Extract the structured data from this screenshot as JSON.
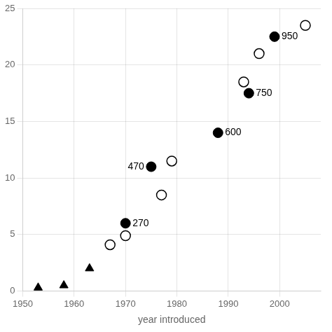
{
  "chart_data": {
    "type": "scatter",
    "x_label": "year introduced",
    "series": [
      {
        "marker": "triangle",
        "color": "#000000",
        "x": [
          1953,
          1958,
          1963
        ],
        "values": [
          0.3,
          0.5,
          2.0
        ]
      },
      {
        "marker": "circle",
        "color": "#000000",
        "x": [
          1970,
          1975,
          1988,
          1994,
          1999
        ],
        "values": [
          6.0,
          11.0,
          14.0,
          17.5,
          22.5
        ]
      },
      {
        "marker": "circle_open",
        "color": "#000000",
        "x": [
          1967,
          1970,
          1977,
          1979,
          1993,
          1996,
          2005
        ],
        "values": [
          4.1,
          4.9,
          8.5,
          11.5,
          18.5,
          21.0,
          23.5
        ]
      }
    ],
    "annotations": [
      {
        "text": "270",
        "x": 1970,
        "y": 6.0
      },
      {
        "text": "470",
        "x": 1975,
        "y": 11.0
      },
      {
        "text": "600",
        "x": 1988,
        "y": 14.0
      },
      {
        "text": "750",
        "x": 1994,
        "y": 17.5
      },
      {
        "text": "950",
        "x": 1999,
        "y": 22.5
      }
    ],
    "xlim": [
      1950,
      2008
    ],
    "ylim": [
      0,
      25
    ],
    "xticks": [
      1950,
      1960,
      1970,
      1980,
      1990,
      2000
    ],
    "yticks": [
      0,
      5,
      10,
      15,
      20,
      25
    ],
    "grid": true
  }
}
